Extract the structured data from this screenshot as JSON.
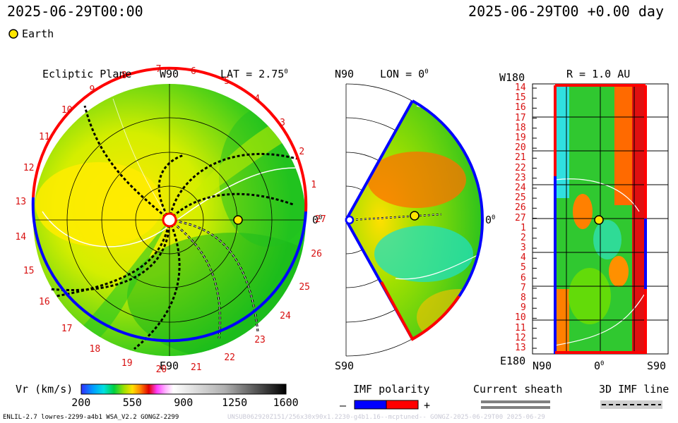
{
  "header": {
    "left_datetime": "2025-06-29T00:00",
    "right_datetime": "2025-06-29T00 +0.00 day",
    "legend_earth": "Earth"
  },
  "colors": {
    "earth_marker": "#ffe600",
    "imf_negative": "#0000ff",
    "imf_positive": "#ff0000",
    "sheath_gray": "#808080"
  },
  "panel_ecliptic": {
    "title": "Ecliptic Plane",
    "lat_label": "LAT = 2.75",
    "lat_sup": "0",
    "top_label": "W90",
    "bottom_label": "E90",
    "right_label": "0",
    "right_sup": "0",
    "carrington_labels": [
      "1",
      "2",
      "3",
      "4",
      "5",
      "6",
      "7",
      "8",
      "9",
      "10",
      "11",
      "12",
      "13",
      "14",
      "15",
      "16",
      "17",
      "18",
      "19",
      "20",
      "21",
      "22",
      "23",
      "24",
      "25",
      "26",
      "27"
    ]
  },
  "panel_meridional": {
    "top_label": "N90",
    "bottom_label": "S90",
    "lon_label": "LON = 0",
    "lon_sup": "0",
    "right_label": "0",
    "right_sup": "0"
  },
  "panel_r": {
    "title": "R = 1.0 AU",
    "top_left_label": "W180",
    "bottom_left_label": "E180",
    "x_left": "N90",
    "x_mid": "0",
    "x_mid_sup": "0",
    "x_right": "S90",
    "y_labels": [
      "14",
      "15",
      "16",
      "17",
      "18",
      "19",
      "20",
      "21",
      "22",
      "23",
      "24",
      "25",
      "26",
      "27",
      "1",
      "2",
      "3",
      "4",
      "5",
      "6",
      "7",
      "8",
      "9",
      "10",
      "11",
      "12",
      "13"
    ]
  },
  "colorbar": {
    "label": "Vr (km/s)",
    "min": 200,
    "max": 1600,
    "ticks": [
      "200",
      "550",
      "900",
      "1250",
      "1600"
    ]
  },
  "legend_imf": {
    "title": "IMF polarity",
    "minus": "–",
    "plus": "+"
  },
  "legend_sheath": {
    "title": "Current sheath"
  },
  "legend_3d": {
    "title": "3D IMF line"
  },
  "footer": {
    "model_text": "ENLIL-2.7 lowres-2299-a4b1 WSA_V2.2 GONGZ-2299",
    "faint_text": "UNSUB062920Z151/256x30x90x1.2230-g4b1.16--mcptuned-- GONGZ-2025-06-29T00   2025-06-29"
  },
  "chart_data": [
    {
      "type": "heatmap",
      "title": "Ecliptic Plane",
      "subtitle": "LAT = 2.75",
      "variable": "Vr (km/s)",
      "value_range": [
        200,
        1600
      ],
      "angular_labels": [
        "W90",
        "E90",
        "0"
      ],
      "earth_marker": {
        "label": "Earth",
        "longitude_deg": 0,
        "r_au": 1.0
      }
    },
    {
      "type": "heatmap",
      "title": "LON = 0",
      "variable": "Vr (km/s)",
      "value_range": [
        200,
        1600
      ],
      "latitude_labels": [
        "N90",
        "S90",
        "0"
      ],
      "earth_marker": {
        "label": "Earth",
        "latitude_deg": 0,
        "r_au": 1.0
      }
    },
    {
      "type": "heatmap",
      "title": "R = 1.0 AU",
      "variable": "Vr (km/s)",
      "value_range": [
        200,
        1600
      ],
      "x_tick_labels": [
        "N90",
        "0",
        "S90"
      ],
      "y_tick_labels": [
        "14",
        "15",
        "16",
        "17",
        "18",
        "19",
        "20",
        "21",
        "22",
        "23",
        "24",
        "25",
        "26",
        "27",
        "1",
        "2",
        "3",
        "4",
        "5",
        "6",
        "7",
        "8",
        "9",
        "10",
        "11",
        "12",
        "13"
      ],
      "y_end_labels": [
        "W180",
        "E180"
      ],
      "earth_marker": {
        "label": "Earth",
        "latitude_deg": 0,
        "longitude_deg": 0
      }
    }
  ]
}
